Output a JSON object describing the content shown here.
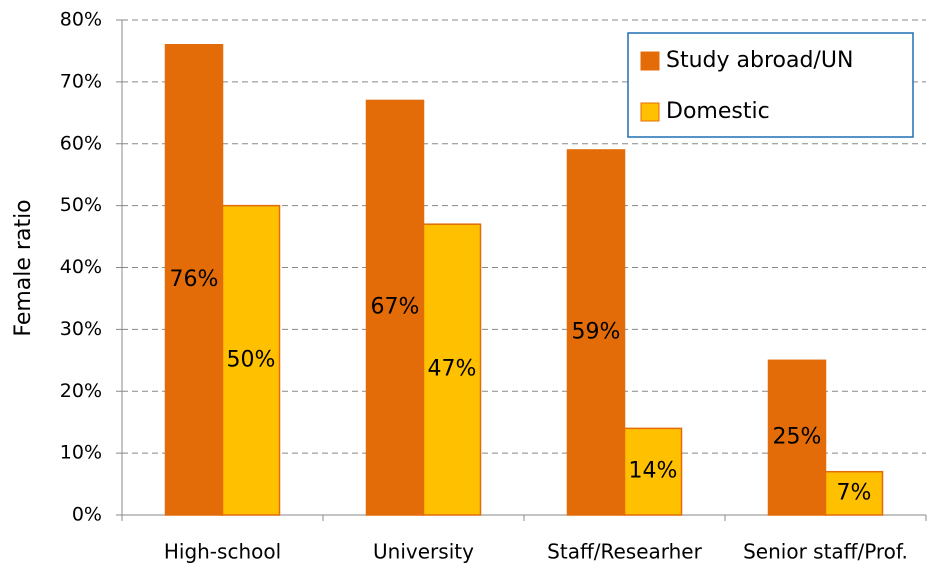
{
  "chart_data": {
    "type": "bar",
    "ylabel": "Female ratio",
    "categories": [
      "High-school",
      "University",
      "Staff/Researher",
      "Senior staff/Prof."
    ],
    "series": [
      {
        "name": "Study abroad/UN",
        "color": "#e36c09",
        "values": [
          76,
          67,
          59,
          25
        ],
        "value_labels": [
          "76%",
          "67%",
          "59%",
          "25%"
        ]
      },
      {
        "name": "Domestic",
        "color": "#ffc000",
        "values": [
          50,
          47,
          14,
          7
        ],
        "value_labels": [
          "50%",
          "47%",
          "14%",
          "7%"
        ]
      }
    ],
    "ylim": [
      0,
      80
    ],
    "yticks": [
      {
        "value": 0,
        "label": "0%"
      },
      {
        "value": 10,
        "label": "10%"
      },
      {
        "value": 20,
        "label": "20%"
      },
      {
        "value": 30,
        "label": "30%"
      },
      {
        "value": 40,
        "label": "40%"
      },
      {
        "value": 50,
        "label": "50%"
      },
      {
        "value": 60,
        "label": "60%"
      },
      {
        "value": 70,
        "label": "70%"
      },
      {
        "value": 80,
        "label": "80%"
      }
    ],
    "grid": true,
    "legend": "upper right"
  }
}
